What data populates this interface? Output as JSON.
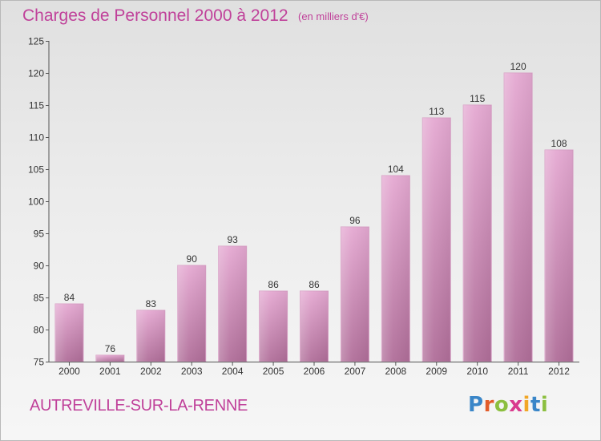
{
  "header": {
    "title": "Charges de Personnel 2000 à 2012",
    "subtitle": "(en milliers d'€)"
  },
  "footer": {
    "commune": "AUTREVILLE-SUR-LA-RENNE",
    "logo_text": "Proxiti"
  },
  "colors": {
    "title": "#c0419a",
    "bar_top": "#e5a9d2",
    "bar_bottom": "#b06e99",
    "axis": "#555555"
  },
  "chart_data": {
    "type": "bar",
    "title": "Charges de Personnel 2000 à 2012",
    "subtitle": "(en milliers d'€)",
    "xlabel": "",
    "ylabel": "",
    "categories": [
      "2000",
      "2001",
      "2002",
      "2003",
      "2004",
      "2005",
      "2006",
      "2007",
      "2008",
      "2009",
      "2010",
      "2011",
      "2012"
    ],
    "values": [
      84,
      76,
      83,
      90,
      93,
      86,
      86,
      96,
      104,
      113,
      115,
      120,
      108
    ],
    "ylim": [
      75,
      125
    ],
    "yticks": [
      75,
      80,
      85,
      90,
      95,
      100,
      105,
      110,
      115,
      120,
      125
    ],
    "grid": false,
    "legend": "none"
  }
}
